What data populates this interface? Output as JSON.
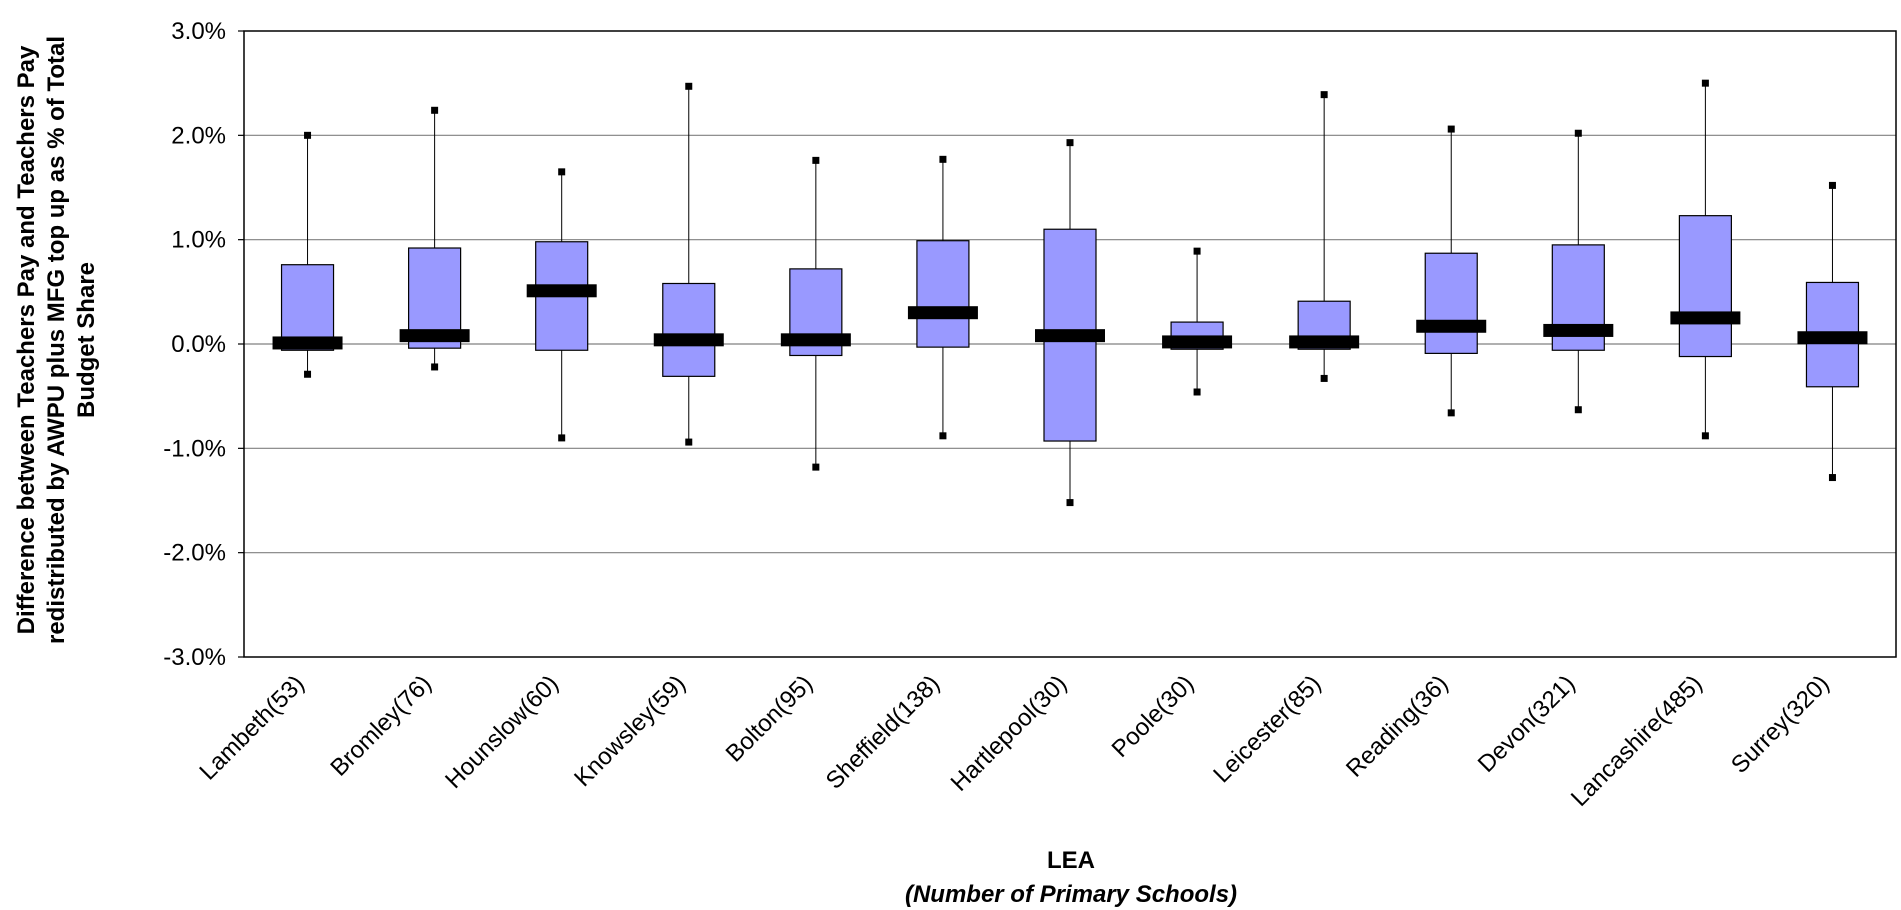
{
  "chart_data": {
    "type": "boxplot",
    "colors": {
      "box_fill": "#9999ff",
      "box_stroke": "#000000",
      "median": "#000000",
      "grid": "#808080"
    },
    "ylim": [
      -0.03,
      0.03
    ],
    "yticks": [
      -0.03,
      -0.02,
      -0.01,
      0.0,
      0.01,
      0.02,
      0.03
    ],
    "ytick_labels": [
      "-3.0%",
      "-2.0%",
      "-1.0%",
      "0.0%",
      "1.0%",
      "2.0%",
      "3.0%"
    ],
    "grid": true,
    "ylabel_lines": [
      "Difference between Teachers Pay and Teachers Pay",
      "redistributed by AWPU plus MFG top up as % of Total",
      "Budget Share"
    ],
    "xlabel": "LEA",
    "xlabel_sub": "(Number of Primary Schools)",
    "categories": [
      "Lambeth(53)",
      "Bromley(76)",
      "Hounslow(60)",
      "Knowsley(59)",
      "Bolton(95)",
      "Sheffield(138)",
      "Hartlepool(30)",
      "Poole(30)",
      "Leicester(85)",
      "Reading(36)",
      "Devon(321)",
      "Lancashire(485)",
      "Surrey(320)"
    ],
    "series": [
      {
        "min": -0.0029,
        "q1": -0.0006,
        "median": 0.0001,
        "q3": 0.0076,
        "max": 0.02
      },
      {
        "min": -0.0022,
        "q1": -0.0004,
        "median": 0.0008,
        "q3": 0.0092,
        "max": 0.0224
      },
      {
        "min": -0.009,
        "q1": -0.0006,
        "median": 0.0051,
        "q3": 0.0098,
        "max": 0.0165
      },
      {
        "min": -0.0094,
        "q1": -0.0031,
        "median": 0.0004,
        "q3": 0.0058,
        "max": 0.0247
      },
      {
        "min": -0.0118,
        "q1": -0.0011,
        "median": 0.0004,
        "q3": 0.0072,
        "max": 0.0176
      },
      {
        "min": -0.0088,
        "q1": -0.0003,
        "median": 0.003,
        "q3": 0.0099,
        "max": 0.0177
      },
      {
        "min": -0.0152,
        "q1": -0.0093,
        "median": 0.0008,
        "q3": 0.011,
        "max": 0.0193
      },
      {
        "min": -0.0046,
        "q1": -0.0005,
        "median": 0.0002,
        "q3": 0.0021,
        "max": 0.0089
      },
      {
        "min": -0.0033,
        "q1": -0.0005,
        "median": 0.0002,
        "q3": 0.0041,
        "max": 0.0239
      },
      {
        "min": -0.0066,
        "q1": -0.0009,
        "median": 0.0017,
        "q3": 0.0087,
        "max": 0.0206
      },
      {
        "min": -0.0063,
        "q1": -0.0006,
        "median": 0.0013,
        "q3": 0.0095,
        "max": 0.0202
      },
      {
        "min": -0.0088,
        "q1": -0.0012,
        "median": 0.0025,
        "q3": 0.0123,
        "max": 0.025
      },
      {
        "min": -0.0128,
        "q1": -0.0041,
        "median": 0.0006,
        "q3": 0.0059,
        "max": 0.0152
      }
    ]
  }
}
